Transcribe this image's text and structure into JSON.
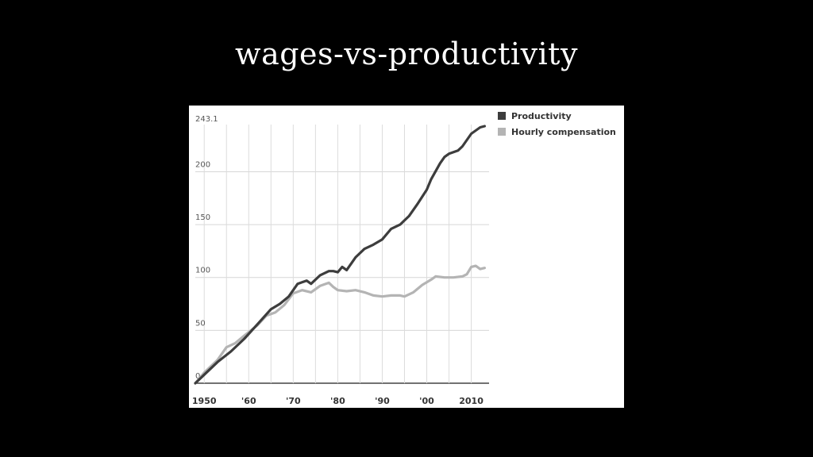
{
  "slide": {
    "title": "wages-vs-productivity"
  },
  "chart_data": {
    "type": "line",
    "title": "wages-vs-productivity",
    "xlabel": "",
    "ylabel": "",
    "xlim": [
      1948,
      2014
    ],
    "ylim": [
      0,
      243.1
    ],
    "y_ticks": [
      {
        "value": 0,
        "label": "0"
      },
      {
        "value": 50,
        "label": "50"
      },
      {
        "value": 100,
        "label": "100"
      },
      {
        "value": 150,
        "label": "150"
      },
      {
        "value": 200,
        "label": "200"
      },
      {
        "value": 243.1,
        "label": "243.1"
      }
    ],
    "x_ticks": [
      {
        "value": 1950,
        "label": "1950"
      },
      {
        "value": 1960,
        "label": "'60"
      },
      {
        "value": 1970,
        "label": "'70"
      },
      {
        "value": 1980,
        "label": "'80"
      },
      {
        "value": 1990,
        "label": "'90"
      },
      {
        "value": 2000,
        "label": "'00"
      },
      {
        "value": 2010,
        "label": "2010"
      }
    ],
    "grid": true,
    "legend_position": "top-right",
    "colors": {
      "productivity": "#3d3d3d",
      "hourly_compensation": "#b4b4b4"
    },
    "series": [
      {
        "name": "Productivity",
        "x": [
          1948,
          1950,
          1953,
          1956,
          1959,
          1962,
          1965,
          1967,
          1969,
          1971,
          1973,
          1974,
          1976,
          1978,
          1979,
          1980,
          1981,
          1982,
          1984,
          1986,
          1988,
          1990,
          1992,
          1994,
          1996,
          1998,
          2000,
          2001,
          2003,
          2004,
          2005,
          2007,
          2008,
          2010,
          2011,
          2012,
          2013
        ],
        "values": [
          0,
          8,
          20,
          30,
          42,
          56,
          70,
          75,
          82,
          94,
          97,
          94,
          102,
          106,
          106,
          105,
          110,
          107,
          119,
          127,
          131,
          136,
          146,
          150,
          158,
          170,
          183,
          193,
          208,
          214,
          217,
          220,
          224,
          236,
          239,
          242,
          243.1
        ]
      },
      {
        "name": "Hourly compensation",
        "x": [
          1948,
          1950,
          1953,
          1955,
          1957,
          1959,
          1962,
          1964,
          1966,
          1968,
          1970,
          1972,
          1974,
          1976,
          1978,
          1979,
          1980,
          1982,
          1984,
          1986,
          1988,
          1990,
          1992,
          1994,
          1995,
          1997,
          1999,
          2001,
          2002,
          2004,
          2006,
          2008,
          2009,
          2010,
          2011,
          2012,
          2013
        ],
        "values": [
          0,
          10,
          22,
          34,
          38,
          45,
          55,
          64,
          67,
          74,
          85,
          88,
          86,
          92,
          95,
          91,
          88,
          87,
          88,
          86,
          83,
          82,
          83,
          83,
          82,
          86,
          93,
          98,
          101,
          100,
          100,
          101,
          103,
          110,
          111,
          108,
          109
        ]
      }
    ]
  }
}
